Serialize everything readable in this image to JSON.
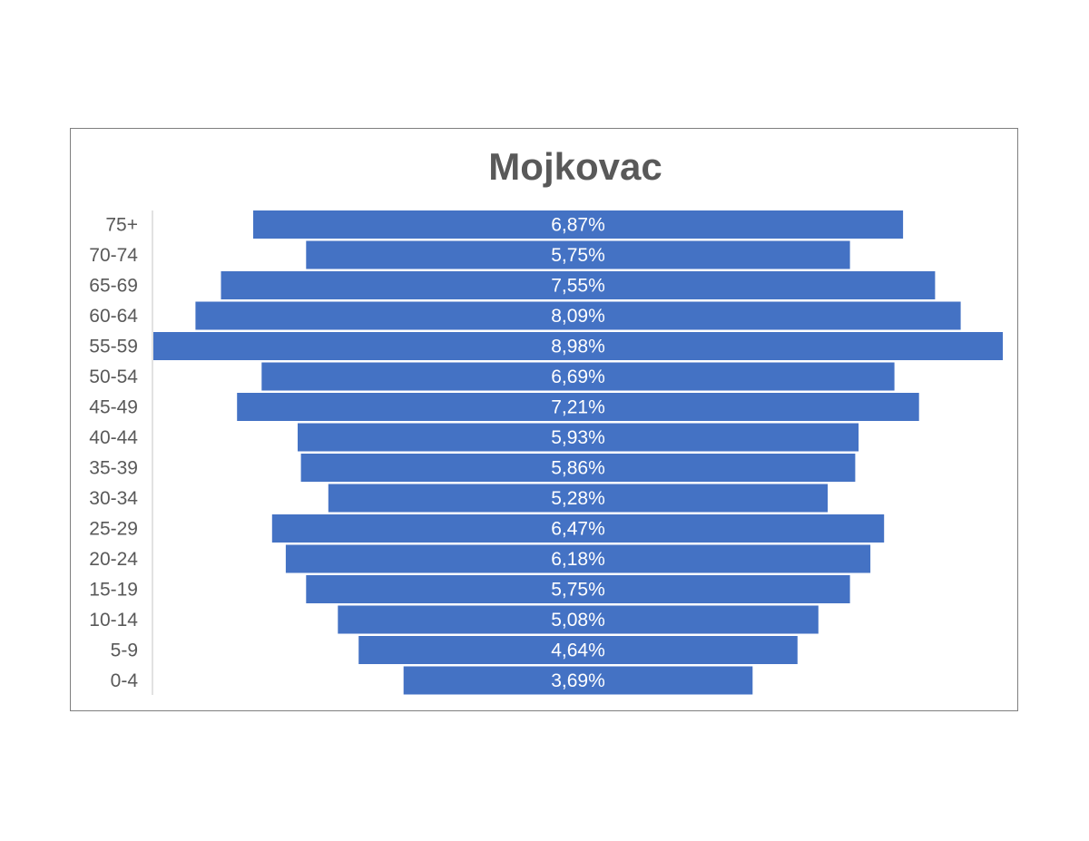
{
  "chart_data": {
    "type": "bar",
    "title": "Mojkovac",
    "orientation": "horizontal-centered",
    "categories": [
      "75+",
      "70-74",
      "65-69",
      "60-64",
      "55-59",
      "50-54",
      "45-49",
      "40-44",
      "35-39",
      "30-34",
      "25-29",
      "20-24",
      "15-19",
      "10-14",
      "5-9",
      "0-4"
    ],
    "values": [
      6.87,
      5.75,
      7.55,
      8.09,
      8.98,
      6.69,
      7.21,
      5.93,
      5.86,
      5.28,
      6.47,
      6.18,
      5.75,
      5.08,
      4.64,
      3.69
    ],
    "labels": [
      "6,87%",
      "5,75%",
      "7,55%",
      "8,09%",
      "8,98%",
      "6,69%",
      "7,21%",
      "5,93%",
      "5,86%",
      "5,28%",
      "6,47%",
      "6,18%",
      "5,75%",
      "5,08%",
      "4,64%",
      "3,69%"
    ],
    "colors": {
      "bar": "#4472c4",
      "axis": "#d9d9d9",
      "text": "#595959"
    }
  }
}
